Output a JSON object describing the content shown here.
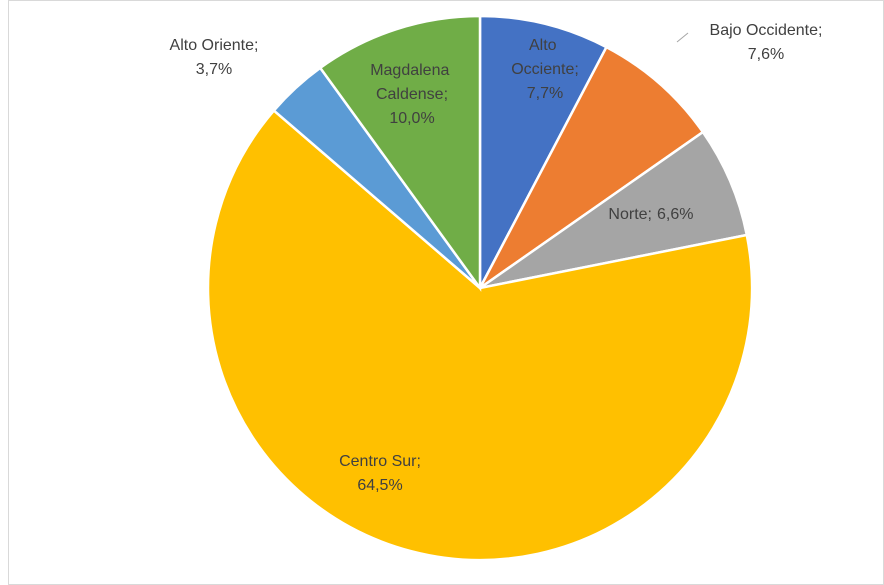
{
  "chart_data": {
    "type": "pie",
    "categories": [
      "Alto Occiente;",
      "Bajo Occidente;",
      "Norte;",
      "Centro Sur;",
      "Alto Oriente;",
      "Magdalena Caldense;"
    ],
    "values": [
      7.7,
      7.6,
      6.6,
      64.5,
      3.7,
      10.0
    ],
    "value_labels": [
      "7,7%",
      "7,6%",
      "6,6%",
      "64,5%",
      "3,7%",
      "10,0%"
    ],
    "colors": [
      "#4472c4",
      "#ed7d31",
      "#a5a5a5",
      "#ffc000",
      "#5b9bd5",
      "#70ad47"
    ]
  }
}
